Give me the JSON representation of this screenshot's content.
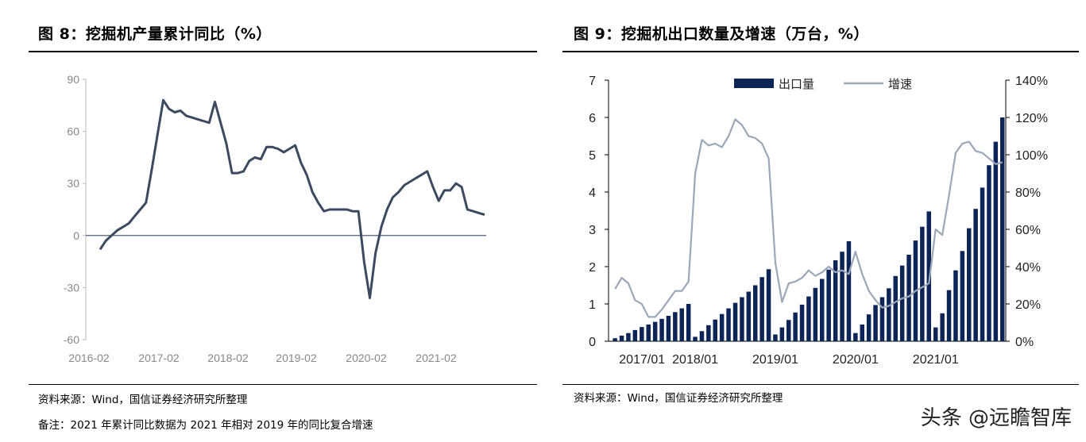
{
  "left": {
    "title": "图 8：挖掘机产量累计同比（%）",
    "source": "资料来源：Wind，国信证券经济研究所整理",
    "note": "备注：2021 年累计同比数据为 2021 年相对 2019 年的同比复合增速"
  },
  "right": {
    "title": "图 9：挖掘机出口数量及增速（万台，%）",
    "source": "资料来源：Wind，国信证券经济研究所整理"
  },
  "watermark": "头条 @远瞻智库",
  "colors": {
    "line_left": "#3b4a5e",
    "bar": "#0d2456",
    "growth_line": "#9aa8b8"
  },
  "chart_data": [
    {
      "type": "line",
      "title": "",
      "xlabel": "",
      "ylabel": "",
      "ylim": [
        -60,
        90
      ],
      "yticks": [
        "90",
        "60",
        "30",
        "0",
        "-30",
        "-60"
      ],
      "xtick_labels": [
        "2016-02",
        "2017-02",
        "2018-02",
        "2019-02",
        "2020-02",
        "2021-02"
      ],
      "grid": false,
      "zero_line": true,
      "series": [
        {
          "values": [
            -8,
            -3,
            0,
            3,
            5,
            7,
            11,
            15,
            19,
            38,
            58,
            78,
            73,
            71,
            72,
            69,
            68,
            67,
            66,
            65,
            77,
            65,
            53,
            36,
            36,
            37,
            43,
            45,
            44,
            51,
            51,
            50,
            48,
            50,
            52,
            42,
            35,
            25,
            19,
            14,
            15,
            15,
            15,
            15,
            14,
            14,
            -15,
            -36,
            -10,
            5,
            15,
            22,
            25,
            29,
            31,
            33,
            35,
            37,
            28,
            20,
            26,
            26,
            30,
            28,
            15,
            14,
            13,
            12
          ]
        }
      ]
    },
    {
      "type": "bar+line",
      "title": "",
      "x_start": "2017/01",
      "xtick_labels": [
        "2017/01",
        "2018/01",
        "2019/01",
        "2020/01",
        "2021/01"
      ],
      "y_left_lim": [
        0,
        7
      ],
      "y_left_ticks": [
        "0",
        "1",
        "2",
        "3",
        "4",
        "5",
        "6",
        "7"
      ],
      "y_right_lim": [
        0,
        140
      ],
      "y_right_ticks": [
        "0%",
        "20%",
        "40%",
        "60%",
        "80%",
        "100%",
        "120%",
        "140%"
      ],
      "legend": {
        "position": "top",
        "entries": [
          "出口量",
          "增速"
        ]
      },
      "series": [
        {
          "name": "出口量",
          "axis": "left",
          "kind": "bar",
          "values": [
            0.08,
            0.15,
            0.22,
            0.3,
            0.38,
            0.45,
            0.52,
            0.6,
            0.68,
            0.78,
            0.88,
            1.0,
            0.12,
            0.27,
            0.43,
            0.58,
            0.73,
            0.88,
            1.03,
            1.18,
            1.33,
            1.5,
            1.72,
            1.93,
            0.18,
            0.37,
            0.57,
            0.77,
            0.98,
            1.2,
            1.43,
            1.67,
            1.92,
            2.17,
            2.4,
            2.68,
            0.22,
            0.45,
            0.72,
            0.97,
            1.18,
            1.42,
            1.75,
            2.03,
            2.32,
            2.7,
            3.07,
            3.48,
            0.37,
            0.75,
            1.37,
            1.9,
            2.42,
            3.03,
            3.55,
            4.12,
            4.72,
            5.35,
            6.0
          ]
        },
        {
          "name": "增速",
          "axis": "right",
          "kind": "line",
          "values": [
            28,
            34,
            31,
            22,
            20,
            13,
            13,
            17,
            22,
            27,
            27,
            32,
            90,
            108,
            105,
            106,
            104,
            110,
            119,
            116,
            110,
            109,
            106,
            98,
            42,
            21,
            31,
            32,
            34,
            38,
            35,
            37,
            40,
            37,
            38,
            36,
            48,
            36,
            27,
            22,
            18,
            19,
            21,
            23,
            24,
            27,
            29,
            31,
            60,
            57,
            78,
            101,
            106,
            107,
            102,
            101,
            98,
            95,
            96
          ]
        }
      ]
    }
  ]
}
